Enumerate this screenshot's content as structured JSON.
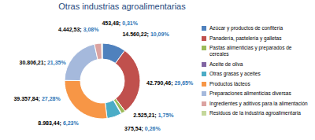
{
  "chart_data": {
    "type": "donut",
    "title": "Otras industrias agroalimentarias",
    "categories": [
      "Azúcar y productos de confitería",
      "Panadería, pastelería y galletas",
      "Pastas alimenticias y preparados de cereales",
      "Aceite de oliva",
      "Otras grasas y aceites",
      "Productos lácteos",
      "Preparaciones alimenticias diversas",
      "Ingredientes y aditivos para la alimentación",
      "Residuos de la industria agroalimentaria"
    ],
    "values": [
      14560.22,
      42790.46,
      2525.21,
      375.54,
      8983.44,
      39357.84,
      30806.21,
      4442.53,
      453.48
    ],
    "value_labels": [
      "14.560,22; 10,09%",
      "42.790,46; 29,65%",
      "2.525,21; 1,75%",
      "375,54; 0,26%",
      "8.983,44; 6,23%",
      "39.357,84; 27,28%",
      "30.806,21; 21,35%",
      "4.442,53; 3,08%",
      "453,48; 0,31%"
    ],
    "colors": [
      "#4f81bd",
      "#c0504d",
      "#9bbb59",
      "#8064a2",
      "#4bacc6",
      "#f79646",
      "#a5b9dc",
      "#dba3a1",
      "#c4d79b"
    ],
    "data_labels": true,
    "legend": "right"
  }
}
